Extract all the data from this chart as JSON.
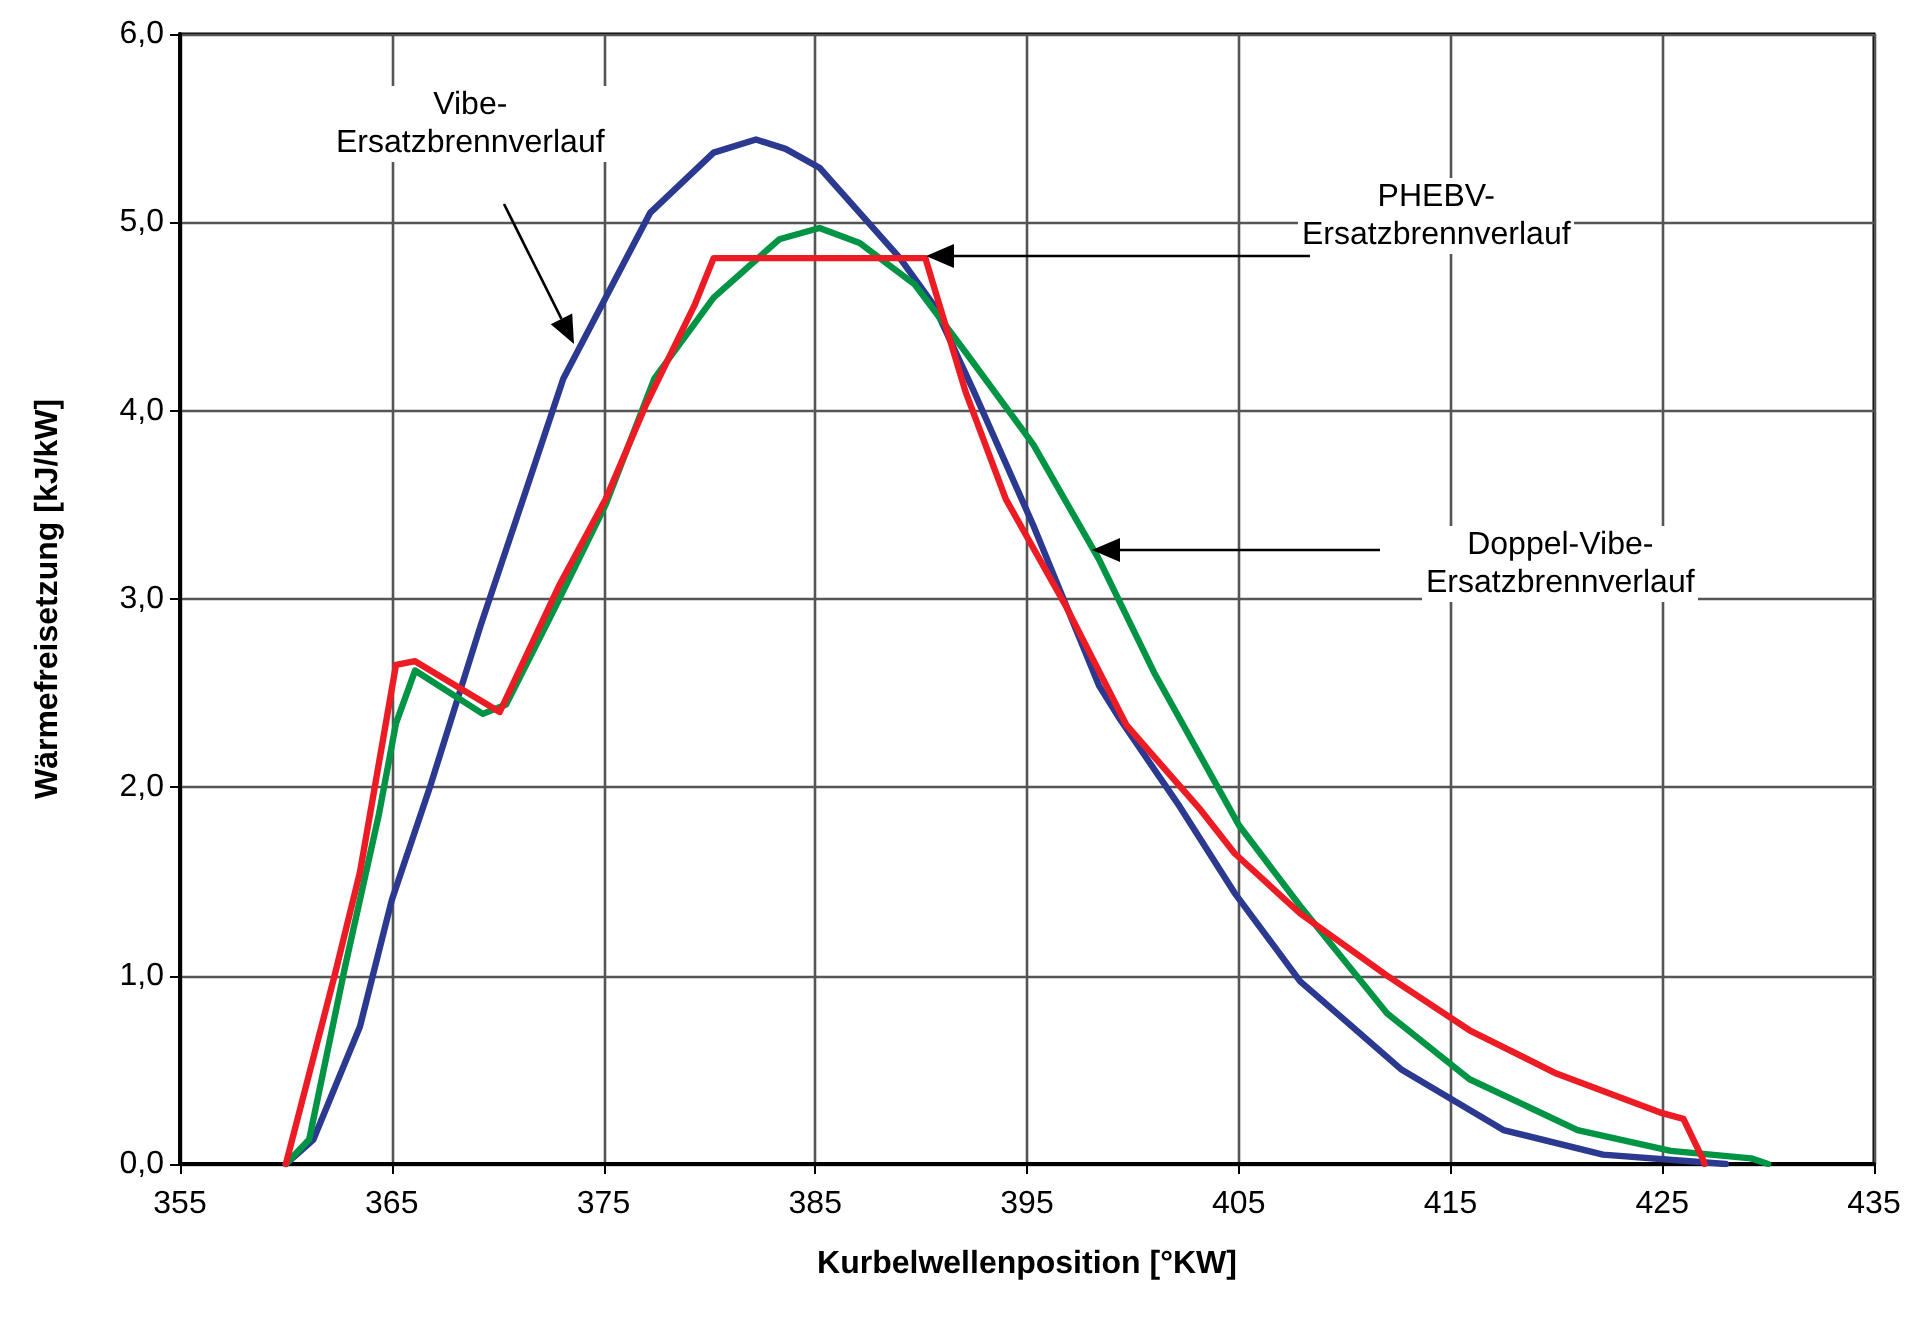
{
  "chart_data": {
    "type": "line",
    "xlabel": "Kurbelwellenposition [°KW]",
    "ylabel": "Wärmefreisetzung [kJ/kW]",
    "xlim": [
      355,
      435
    ],
    "xticks": [
      355,
      365,
      375,
      385,
      395,
      405,
      415,
      425,
      435
    ],
    "ylim": [
      0,
      6
    ],
    "yticks": [
      {
        "value": 0,
        "label": "0,0"
      },
      {
        "value": 1,
        "label": "1,0"
      },
      {
        "value": 2,
        "label": "2,0"
      },
      {
        "value": 3,
        "label": "3,0"
      },
      {
        "value": 4,
        "label": "4,0"
      },
      {
        "value": 5,
        "label": "5,0"
      },
      {
        "value": 6,
        "label": "6,0"
      }
    ],
    "grid": true,
    "marker": "none",
    "line_style": "solid",
    "series": [
      {
        "color": "#2b3990",
        "x": [
          360,
          361.3,
          363.5,
          365,
          366.8,
          369.2,
          371.2,
          373.1,
          375.1,
          377.2,
          380.2,
          382.2,
          383.6,
          385.2,
          387.1,
          389,
          390.6,
          392.5,
          395.3,
          398.4,
          399.4,
          402.2,
          404.8,
          407.9,
          412.7,
          417.5,
          422.2,
          428
        ],
        "values": [
          0,
          0.13,
          0.73,
          1.4,
          2.0,
          2.86,
          3.53,
          4.17,
          4.6,
          5.05,
          5.37,
          5.44,
          5.39,
          5.29,
          5.05,
          4.81,
          4.56,
          4.1,
          3.39,
          2.54,
          2.36,
          1.9,
          1.44,
          0.97,
          0.5,
          0.18,
          0.05,
          0
        ]
      },
      {
        "color": "#009444",
        "x": [
          360,
          361.1,
          362.8,
          364.4,
          365.2,
          366.1,
          369.3,
          370.4,
          372.6,
          375.1,
          377.4,
          380.2,
          383.3,
          385.2,
          387.1,
          389.7,
          392.1,
          395.3,
          398.4,
          401,
          405,
          407.9,
          412,
          415.9,
          421,
          425.4,
          429.2,
          430
        ],
        "values": [
          0,
          0.13,
          1.05,
          1.86,
          2.34,
          2.62,
          2.39,
          2.44,
          2.93,
          3.5,
          4.17,
          4.6,
          4.91,
          4.97,
          4.89,
          4.67,
          4.31,
          3.82,
          3.21,
          2.61,
          1.8,
          1.37,
          0.8,
          0.45,
          0.18,
          0.07,
          0.03,
          0
        ]
      },
      {
        "color": "#ed1c24",
        "x": [
          360,
          362.3,
          363.5,
          365.2,
          366.1,
          370.1,
          372.9,
          375.1,
          377,
          379.3,
          380.2,
          381.2,
          390.2,
          392.1,
          394,
          396.8,
          399.7,
          403.2,
          404.8,
          407.9,
          412,
          415.9,
          420,
          425,
          426,
          426.9,
          427
        ],
        "values": [
          0,
          1.0,
          1.55,
          2.65,
          2.67,
          2.4,
          3.07,
          3.53,
          4.03,
          4.56,
          4.81,
          4.81,
          4.81,
          4.1,
          3.53,
          2.97,
          2.33,
          1.88,
          1.65,
          1.33,
          1.0,
          0.71,
          0.48,
          0.27,
          0.24,
          0.03,
          0
        ]
      }
    ],
    "annotations": [
      "Vibe-\nErsatzbrennverlauf",
      "PHEBV-\nErsatzbrennverlauf",
      "Doppel-Vibe-\nErsatzbrennverlauf"
    ]
  }
}
